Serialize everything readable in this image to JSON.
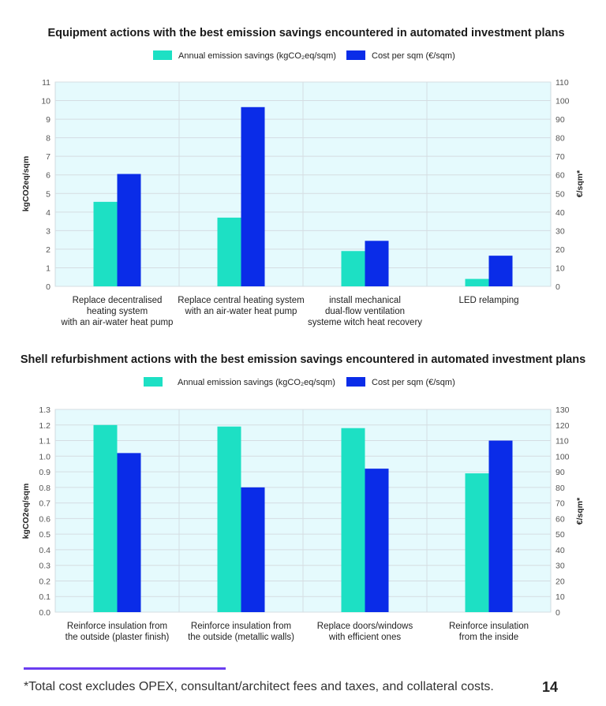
{
  "colors": {
    "emission": "#1de0c4",
    "cost": "#0a2ce8",
    "plot_bg": "#e5fafd",
    "grid": "#d5dde2",
    "accent_rule": "#6a3df0"
  },
  "chart_data": [
    {
      "type": "bar",
      "title": "Equipment actions with the best emission savings encountered in automated investment plans",
      "categories": [
        [
          "Replace decentralised",
          "heating system",
          "with an air-water heat pump"
        ],
        [
          "Replace central heating system",
          "with an air-water heat pump"
        ],
        [
          "install mechanical",
          "dual-flow ventilation",
          "systeme witch heat recovery"
        ],
        [
          "LED relamping"
        ]
      ],
      "series": [
        {
          "name": "Annual emission savings (kgCO₂eq/sqm)",
          "axis": "left",
          "values": [
            4.55,
            3.7,
            1.9,
            0.4
          ]
        },
        {
          "name": "Cost per sqm (€/sqm)",
          "axis": "right",
          "values": [
            60.5,
            96.5,
            24.5,
            16.5
          ]
        }
      ],
      "ylabel": "kgCO2eq/sqm",
      "y2label": "€/sqm*",
      "ylim": [
        0,
        11
      ],
      "y2lim": [
        0,
        110
      ],
      "yticks": [
        "0",
        "1",
        "2",
        "3",
        "4",
        "5",
        "6",
        "7",
        "8",
        "9",
        "10",
        "11"
      ],
      "y2ticks": [
        "0",
        "10",
        "20",
        "30",
        "40",
        "50",
        "60",
        "70",
        "80",
        "90",
        "100",
        "110"
      ],
      "legend_position": "top"
    },
    {
      "type": "bar",
      "title": "Shell refurbishment actions with the best emission savings encountered in automated investment plans",
      "categories": [
        [
          "Reinforce insulation from",
          "the outside (plaster finish)"
        ],
        [
          "Reinforce insulation from",
          "the outside (metallic walls)"
        ],
        [
          "Replace doors/windows",
          "with efficient ones"
        ],
        [
          "Reinforce insulation",
          "from the inside"
        ]
      ],
      "series": [
        {
          "name": "Annual emission savings (kgCO₂eq/sqm)",
          "axis": "left",
          "values": [
            1.2,
            1.19,
            1.18,
            0.89
          ]
        },
        {
          "name": "Cost per sqm (€/sqm)",
          "axis": "right",
          "values": [
            102,
            80,
            92,
            110
          ]
        }
      ],
      "ylabel": "kgCO2eq/sqm",
      "y2label": "€/sqm*",
      "ylim": [
        0,
        1.3
      ],
      "y2lim": [
        0,
        130
      ],
      "yticks": [
        "0.0",
        "0.1",
        "0.2",
        "0.3",
        "0.4",
        "0.5",
        "0.6",
        "0.7",
        "0.8",
        "0.9",
        "1.0",
        "1.1",
        "1.2",
        "1.3"
      ],
      "y2ticks": [
        "0",
        "10",
        "20",
        "30",
        "40",
        "50",
        "60",
        "70",
        "80",
        "90",
        "100",
        "110",
        "120",
        "130"
      ],
      "legend_position": "top"
    }
  ],
  "footnote": "*Total cost excludes OPEX, consultant/architect fees and taxes, and collateral costs.",
  "page_number": "14"
}
